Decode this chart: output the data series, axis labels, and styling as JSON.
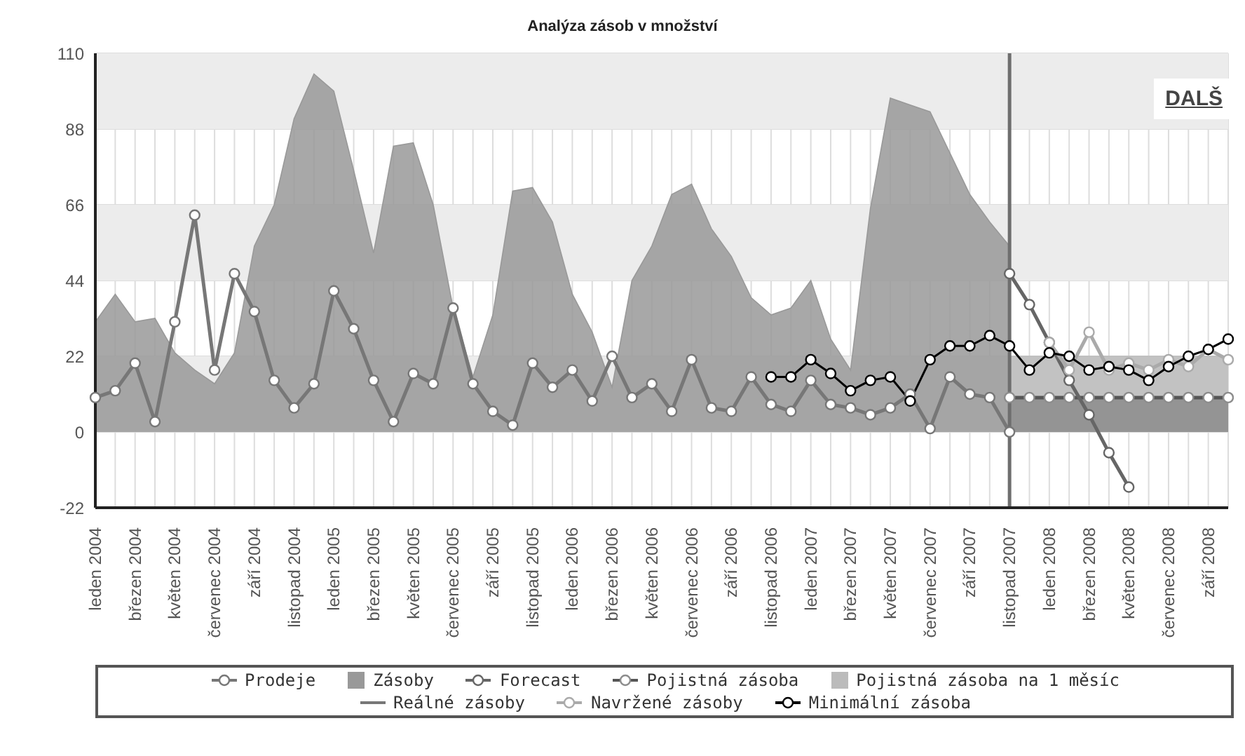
{
  "chart_data": {
    "type": "line",
    "title": "Analýza zásob v množství",
    "categories": [
      "leden 2004",
      null,
      "březen 2004",
      null,
      "květen 2004",
      null,
      "červenec 2004",
      null,
      "září 2004",
      null,
      "listopad 2004",
      null,
      "leden 2005",
      null,
      "březen 2005",
      null,
      "květen 2005",
      null,
      "červenec 2005",
      null,
      "září 2005",
      null,
      "listopad 2005",
      null,
      "leden 2006",
      null,
      "březen 2006",
      null,
      "květen 2006",
      null,
      "červenec 2006",
      null,
      "září 2006",
      null,
      "listopad 2006",
      null,
      "leden 2007",
      null,
      "březen 2007",
      null,
      "květen 2007",
      null,
      "červenec 2007",
      null,
      "září 2007",
      null,
      "listopad 2007",
      null,
      "leden 2008",
      null,
      "březen 2008",
      null,
      "květen 2008",
      null,
      "červenec 2008",
      null,
      "září 2008",
      null
    ],
    "series": [
      {
        "name": "Prodeje",
        "marker": "circle",
        "color": "#777777",
        "values": [
          10,
          12,
          20,
          3,
          32,
          63,
          18,
          46,
          35,
          15,
          7,
          14,
          41,
          30,
          15,
          3,
          17,
          14,
          36,
          14,
          6,
          2,
          20,
          13,
          18,
          9,
          22,
          10,
          14,
          6,
          21,
          7,
          6,
          16,
          8,
          6,
          15,
          8,
          7,
          5,
          7,
          11,
          1,
          16,
          11,
          10,
          0,
          null,
          null,
          null,
          null,
          null,
          null,
          null,
          null,
          null,
          null,
          null
        ]
      },
      {
        "name": "Zásoby",
        "type": "area",
        "marker": "none",
        "color": "#999999",
        "values": [
          32,
          40,
          32,
          33,
          23,
          18,
          14,
          23,
          54,
          66,
          91,
          104,
          99,
          76,
          52,
          83,
          84,
          66,
          36,
          16,
          34,
          70,
          71,
          61,
          40,
          29,
          13,
          44,
          54,
          69,
          72,
          59,
          51,
          39,
          34,
          36,
          44,
          27,
          18,
          65,
          97,
          95,
          93,
          81,
          69,
          61,
          54,
          null,
          null,
          null,
          null,
          null,
          null,
          null,
          null,
          null,
          null,
          null
        ]
      },
      {
        "name": "Forecast",
        "marker": "circle",
        "color": "#666666",
        "values": [
          null,
          null,
          null,
          null,
          null,
          null,
          null,
          null,
          null,
          null,
          null,
          null,
          null,
          null,
          null,
          null,
          null,
          null,
          null,
          null,
          null,
          null,
          null,
          null,
          null,
          null,
          null,
          null,
          null,
          null,
          null,
          null,
          null,
          null,
          null,
          null,
          null,
          null,
          null,
          null,
          null,
          null,
          null,
          null,
          null,
          null,
          46,
          37,
          26,
          15,
          5,
          -6,
          -16,
          null,
          null,
          null,
          null,
          null
        ]
      },
      {
        "name": "Pojistná zásoba",
        "type": "area",
        "marker": "circle",
        "color": "#8c8c8c",
        "values": [
          null,
          null,
          null,
          null,
          null,
          null,
          null,
          null,
          null,
          null,
          null,
          null,
          null,
          null,
          null,
          null,
          null,
          null,
          null,
          null,
          null,
          null,
          null,
          null,
          null,
          null,
          null,
          null,
          null,
          null,
          null,
          null,
          null,
          null,
          null,
          null,
          null,
          null,
          null,
          null,
          null,
          null,
          null,
          null,
          null,
          null,
          10,
          10,
          10,
          10,
          10,
          10,
          10,
          10,
          10,
          10,
          10,
          10
        ]
      },
      {
        "name": "Pojistná zásoba na 1 měsíc",
        "type": "area",
        "marker": "none",
        "color": "#bbbbbb",
        "values": [
          null,
          null,
          null,
          null,
          null,
          null,
          null,
          null,
          null,
          null,
          null,
          null,
          null,
          null,
          null,
          null,
          null,
          null,
          null,
          null,
          null,
          null,
          null,
          null,
          null,
          null,
          null,
          null,
          null,
          null,
          null,
          null,
          null,
          null,
          null,
          null,
          null,
          null,
          null,
          null,
          null,
          null,
          null,
          null,
          null,
          null,
          22,
          22,
          22,
          22,
          22,
          22,
          22,
          22,
          22,
          22,
          22,
          22
        ]
      },
      {
        "name": "Reálné zásoby",
        "color": "#777777",
        "values": [
          null,
          null,
          null,
          null,
          null,
          null,
          null,
          null,
          null,
          null,
          null,
          null,
          null,
          null,
          null,
          null,
          null,
          null,
          null,
          null,
          null,
          null,
          null,
          null,
          null,
          null,
          null,
          null,
          null,
          null,
          null,
          null,
          null,
          null,
          null,
          null,
          null,
          null,
          null,
          null,
          null,
          null,
          null,
          null,
          null,
          null,
          null,
          null,
          null,
          null,
          null,
          null,
          null,
          null,
          null,
          null,
          null,
          null
        ]
      },
      {
        "name": "Navržené zásoby",
        "marker": "circle",
        "color": "#aaaaaa",
        "values": [
          null,
          null,
          null,
          null,
          null,
          null,
          null,
          null,
          null,
          null,
          null,
          null,
          null,
          null,
          null,
          null,
          null,
          null,
          null,
          null,
          null,
          null,
          null,
          null,
          null,
          null,
          null,
          null,
          null,
          null,
          null,
          null,
          null,
          null,
          null,
          null,
          null,
          null,
          null,
          null,
          null,
          null,
          null,
          null,
          null,
          null,
          null,
          null,
          26,
          18,
          29,
          18,
          20,
          18,
          21,
          19,
          24,
          21
        ]
      },
      {
        "name": "Minimální zásoba",
        "marker": "circle",
        "color": "#000000",
        "values": [
          null,
          null,
          null,
          null,
          null,
          null,
          null,
          null,
          null,
          null,
          null,
          null,
          null,
          null,
          null,
          null,
          null,
          null,
          null,
          null,
          null,
          null,
          null,
          null,
          null,
          null,
          null,
          null,
          null,
          null,
          null,
          null,
          null,
          null,
          16,
          16,
          21,
          17,
          12,
          15,
          16,
          9,
          21,
          25,
          25,
          28,
          25,
          18,
          23,
          22,
          18,
          19,
          18,
          15,
          19,
          22,
          24,
          27
        ]
      }
    ],
    "ylim": [
      -22,
      110
    ],
    "yticks": [
      -22,
      0,
      22,
      44,
      66,
      88,
      110
    ],
    "grid": true,
    "legend": "bottom",
    "bands": [
      {
        "axis": "y",
        "from": 0,
        "to": 22,
        "color": "#ececec"
      },
      {
        "axis": "y",
        "from": 44,
        "to": 66,
        "color": "#ececec"
      },
      {
        "axis": "y",
        "from": 88,
        "to": 110,
        "color": "#ececec"
      }
    ],
    "ref_lines": [
      {
        "axis": "x",
        "value": "listopad 2007",
        "color": "#6e6e6e"
      }
    ],
    "annotations": [
      "DALŠ"
    ]
  }
}
